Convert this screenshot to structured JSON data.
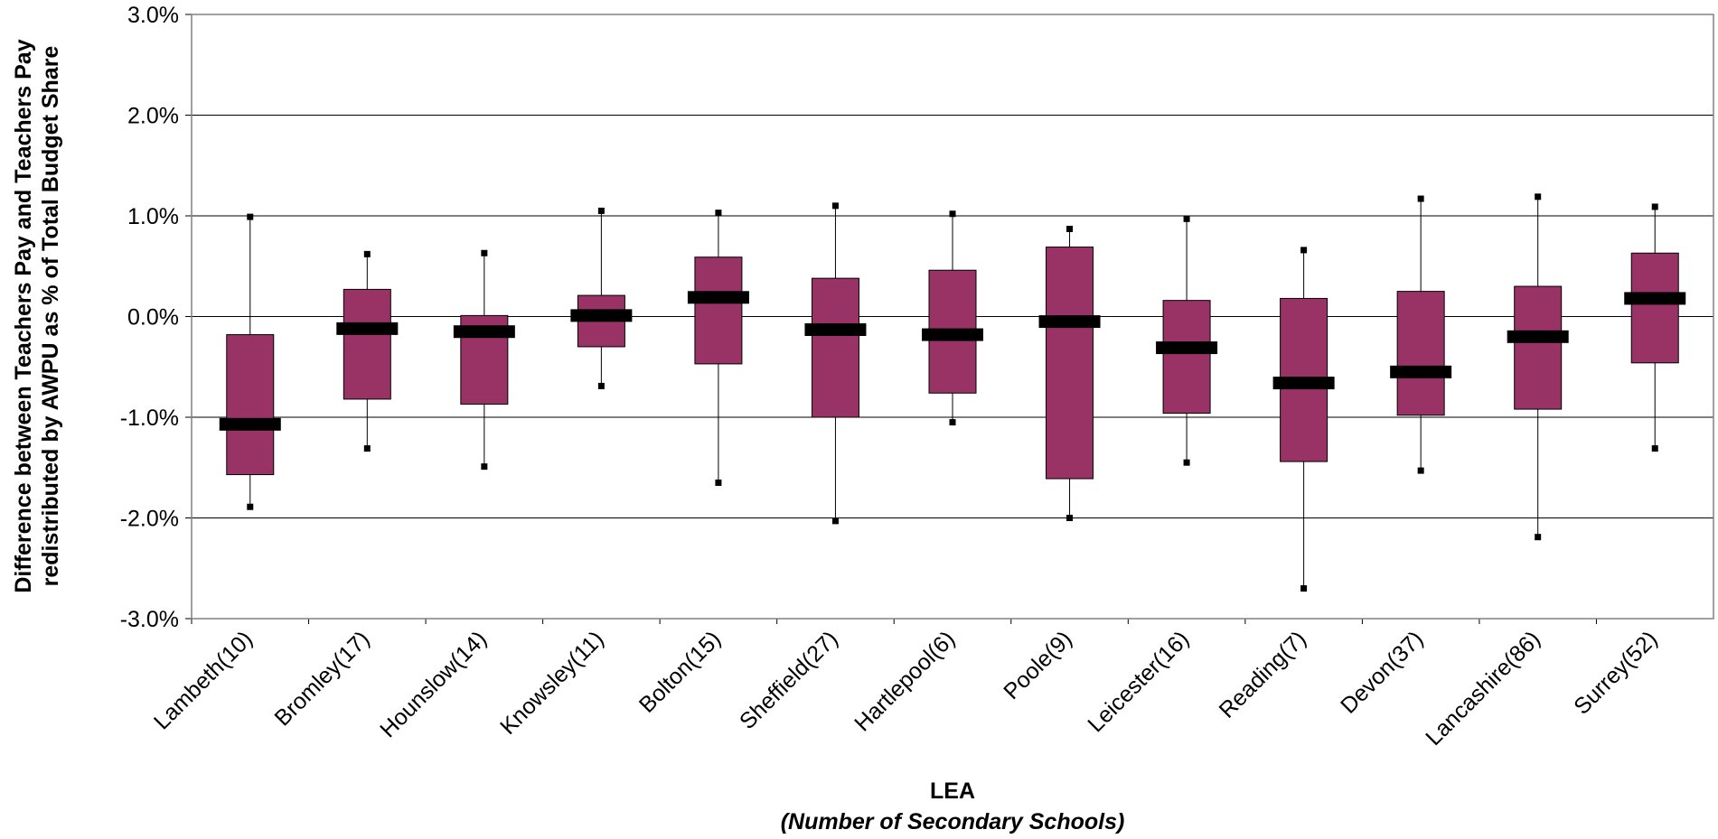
{
  "chart_data": {
    "type": "boxplot",
    "title": "",
    "xlabel": "LEA",
    "xlabel_sub": "(Number of Secondary Schools)",
    "ylabel_line1": "Difference between Teachers Pay and Teachers Pay",
    "ylabel_line2": "redistributed by AWPU as % of Total Budget Share",
    "ylim": [
      -3.0,
      3.0
    ],
    "y_ticks": [
      3.0,
      2.0,
      1.0,
      0.0,
      -1.0,
      -2.0,
      -3.0
    ],
    "y_tick_labels": [
      "3.0%",
      "2.0%",
      "1.0%",
      "0.0%",
      "-1.0%",
      "-2.0%",
      "-3.0%"
    ],
    "grid": true,
    "colors": {
      "box_fill": "#993366",
      "median": "#000000",
      "grid": "#000000"
    },
    "categories": [
      "Lambeth(10)",
      "Bromley(17)",
      "Hounslow(14)",
      "Knowsley(11)",
      "Bolton(15)",
      "Sheffield(27)",
      "Hartlepool(6)",
      "Poole(9)",
      "Leicester(16)",
      "Reading(7)",
      "Devon(37)",
      "Lancashire(86)",
      "Surrey(52)"
    ],
    "series": [
      {
        "category": "Lambeth(10)",
        "min": -1.89,
        "q1": -1.57,
        "median": -1.07,
        "q3": -0.18,
        "max": 0.99
      },
      {
        "category": "Bromley(17)",
        "min": -1.31,
        "q1": -0.82,
        "median": -0.12,
        "q3": 0.27,
        "max": 0.62
      },
      {
        "category": "Hounslow(14)",
        "min": -1.49,
        "q1": -0.87,
        "median": -0.15,
        "q3": 0.01,
        "max": 0.63
      },
      {
        "category": "Knowsley(11)",
        "min": -0.69,
        "q1": -0.3,
        "median": 0.01,
        "q3": 0.21,
        "max": 1.05
      },
      {
        "category": "Bolton(15)",
        "min": -1.65,
        "q1": -0.47,
        "median": 0.19,
        "q3": 0.59,
        "max": 1.03
      },
      {
        "category": "Sheffield(27)",
        "min": -2.03,
        "q1": -1.0,
        "median": -0.13,
        "q3": 0.38,
        "max": 1.1
      },
      {
        "category": "Hartlepool(6)",
        "min": -1.05,
        "q1": -0.76,
        "median": -0.18,
        "q3": 0.46,
        "max": 1.02
      },
      {
        "category": "Poole(9)",
        "min": -2.0,
        "q1": -1.61,
        "median": -0.05,
        "q3": 0.69,
        "max": 0.87
      },
      {
        "category": "Leicester(16)",
        "min": -1.45,
        "q1": -0.96,
        "median": -0.31,
        "q3": 0.16,
        "max": 0.97
      },
      {
        "category": "Reading(7)",
        "min": -2.7,
        "q1": -1.44,
        "median": -0.66,
        "q3": 0.18,
        "max": 0.66
      },
      {
        "category": "Devon(37)",
        "min": -1.53,
        "q1": -0.98,
        "median": -0.55,
        "q3": 0.25,
        "max": 1.17
      },
      {
        "category": "Lancashire(86)",
        "min": -2.19,
        "q1": -0.92,
        "median": -0.2,
        "q3": 0.3,
        "max": 1.19
      },
      {
        "category": "Surrey(52)",
        "min": -1.31,
        "q1": -0.46,
        "median": 0.18,
        "q3": 0.63,
        "max": 1.09
      }
    ]
  }
}
